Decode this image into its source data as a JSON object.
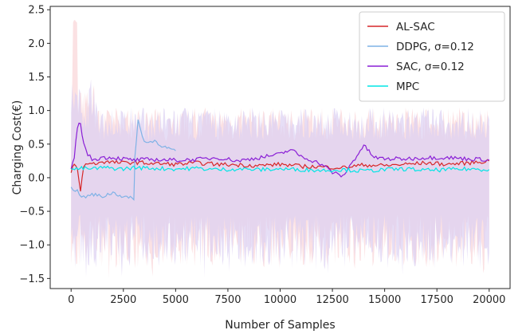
{
  "chart_data": {
    "type": "line",
    "title": "",
    "xlabel": "Number of Samples",
    "ylabel": "Charging Cost(€)",
    "xlim": [
      -1000,
      21000
    ],
    "ylim": [
      -1.65,
      2.55
    ],
    "xticks": [
      0,
      2500,
      5000,
      7500,
      10000,
      12500,
      15000,
      17500,
      20000
    ],
    "yticks": [
      -1.5,
      -1.0,
      -0.5,
      0.0,
      0.5,
      1.0,
      1.5,
      2.0,
      2.5
    ],
    "xtick_labels": [
      "0",
      "2500",
      "5000",
      "7500",
      "10000",
      "12500",
      "15000",
      "17500",
      "20000"
    ],
    "ytick_labels": [
      "−1.5",
      "−1.0",
      "−0.5",
      "0.0",
      "0.5",
      "1.0",
      "1.5",
      "2.0",
      "2.5"
    ],
    "grid": false,
    "legend": "top-right",
    "noise_band": {
      "x_range": [
        0,
        20000
      ],
      "upper_typical": [
        0.55,
        1.05
      ],
      "lower_typical": [
        -0.55,
        -1.35
      ],
      "peak": [
        200,
        2.35
      ],
      "colors": [
        "#f8c8cc",
        "#dcd0f2"
      ]
    },
    "series": [
      {
        "name": "AL-SAC",
        "color": "#d62728",
        "x": [
          0,
          150,
          300,
          450,
          600,
          800,
          1000,
          1500,
          2000,
          2500,
          3000,
          3500,
          4000,
          5000,
          6000,
          7000,
          8000,
          9000,
          10000,
          11000,
          12000,
          13000,
          14000,
          15000,
          16000,
          17000,
          18000,
          19000,
          20000
        ],
        "y": [
          0.1,
          0.2,
          0.12,
          -0.2,
          0.18,
          0.22,
          0.2,
          0.24,
          0.23,
          0.22,
          0.23,
          0.22,
          0.21,
          0.2,
          0.22,
          0.2,
          0.19,
          0.18,
          0.2,
          0.17,
          0.16,
          0.15,
          0.19,
          0.18,
          0.2,
          0.22,
          0.2,
          0.22,
          0.25
        ]
      },
      {
        "name": "DDPG, σ=0.12",
        "color": "#7fb2e6",
        "x": [
          0,
          300,
          600,
          1000,
          1500,
          2000,
          2500,
          3000,
          3050,
          3200,
          3400,
          3600,
          4000,
          4500,
          5000
        ],
        "y": [
          -0.15,
          -0.2,
          -0.3,
          -0.25,
          -0.28,
          -0.22,
          -0.28,
          -0.32,
          0.3,
          0.85,
          0.62,
          0.52,
          0.55,
          0.45,
          0.4
        ]
      },
      {
        "name": "SAC, σ=0.12",
        "color": "#8a1fd6",
        "x": [
          0,
          150,
          300,
          450,
          600,
          800,
          1000,
          1500,
          2000,
          2500,
          3000,
          3500,
          4000,
          5000,
          6000,
          7000,
          8000,
          9000,
          10000,
          10500,
          11000,
          12000,
          12500,
          13000,
          13500,
          14000,
          14500,
          15000,
          16000,
          17000,
          18000,
          19000,
          20000
        ],
        "y": [
          0.1,
          0.3,
          0.75,
          0.82,
          0.5,
          0.35,
          0.27,
          0.3,
          0.3,
          0.28,
          0.26,
          0.27,
          0.27,
          0.26,
          0.27,
          0.3,
          0.25,
          0.3,
          0.35,
          0.42,
          0.32,
          0.2,
          0.08,
          0.02,
          0.25,
          0.48,
          0.3,
          0.28,
          0.28,
          0.3,
          0.3,
          0.28,
          0.27
        ]
      },
      {
        "name": "MPC",
        "color": "#00e5e5",
        "x": [
          0,
          500,
          1000,
          1500,
          2000,
          2500,
          3000,
          4000,
          5000,
          6000,
          7000,
          8000,
          9000,
          10000,
          11000,
          12000,
          13000,
          14000,
          15000,
          16000,
          17000,
          18000,
          19000,
          20000
        ],
        "y": [
          0.12,
          0.14,
          0.13,
          0.15,
          0.14,
          0.13,
          0.15,
          0.14,
          0.13,
          0.14,
          0.12,
          0.13,
          0.12,
          0.13,
          0.12,
          0.11,
          0.12,
          0.1,
          0.12,
          0.13,
          0.11,
          0.12,
          0.13,
          0.12
        ]
      }
    ]
  }
}
